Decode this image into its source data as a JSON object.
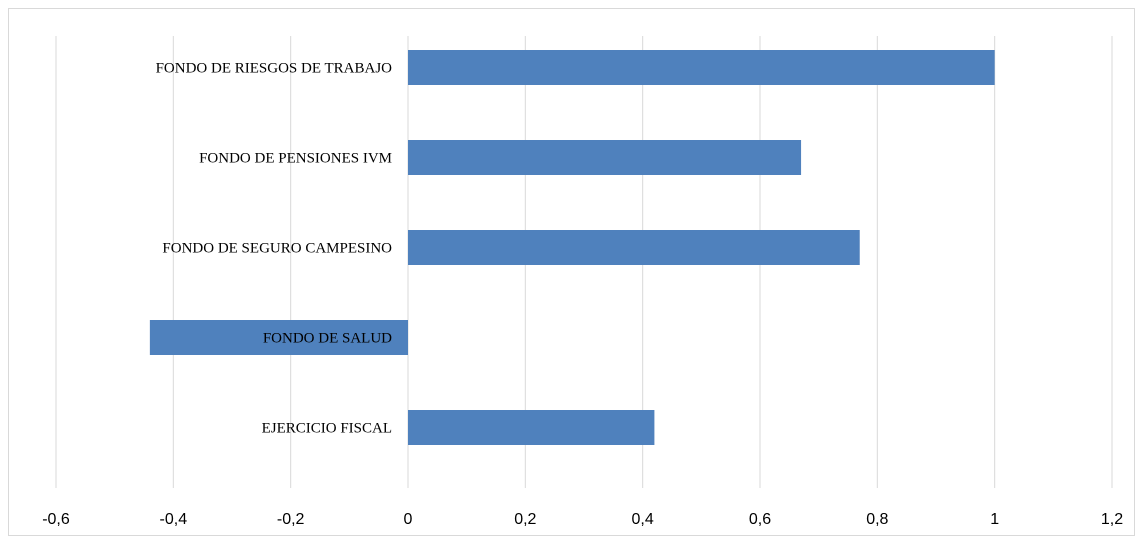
{
  "chart_data": {
    "type": "bar",
    "orientation": "horizontal",
    "title": "",
    "xlabel": "",
    "ylabel": "",
    "categories": [
      "FONDO DE RIESGOS DE TRABAJO",
      "FONDO DE PENSIONES IVM",
      "FONDO DE SEGURO CAMPESINO",
      "FONDO DE SALUD",
      "EJERCICIO FISCAL"
    ],
    "values": [
      1.0,
      0.67,
      0.77,
      -0.44,
      0.42
    ],
    "xlim": [
      -0.6,
      1.2
    ],
    "xticks": [
      "-0,6",
      "-0,4",
      "-0,2",
      "0",
      "0,2",
      "0,4",
      "0,6",
      "0,8",
      "1",
      "1,2"
    ],
    "grid": "vertical",
    "legend": "none",
    "bar_color": "#4f81bd",
    "grid_color": "#d9d9d9"
  }
}
